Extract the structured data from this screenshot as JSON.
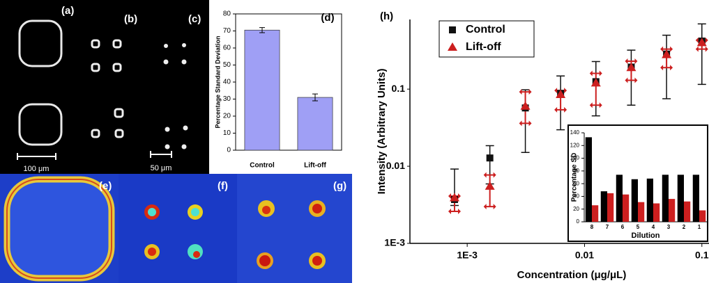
{
  "panels": {
    "labels": [
      "(a)",
      "(b)",
      "(c)",
      "(e)",
      "(f)",
      "(g)"
    ],
    "scale_bars": [
      "100 μm",
      "50 μm"
    ]
  },
  "chart_data": [
    {
      "type": "bar",
      "title": "(d)",
      "y_label": "Percentage Standard Deviation",
      "categories": [
        "Control",
        "Lift-off"
      ],
      "values": [
        70.5,
        31
      ],
      "errors": [
        1.5,
        2
      ],
      "color": "#9f9ff5",
      "ylim": [
        0,
        80
      ],
      "yticks": [
        0,
        10,
        20,
        30,
        40,
        50,
        60,
        70,
        80
      ]
    },
    {
      "type": "scatter",
      "title": "(h)",
      "x_label": "Concentration (μg/μL)",
      "y_label": "Intensity (Arbitrary Units)",
      "log_x": true,
      "log_y": true,
      "legend": "upper-left",
      "x": [
        0.00078,
        0.00156,
        0.00313,
        0.00625,
        0.0125,
        0.025,
        0.05,
        0.1
      ],
      "xlim": [
        0.000325,
        0.115
      ],
      "xticks": [
        {
          "value": 0.001,
          "label": "1E-3"
        },
        0.01,
        0.1
      ],
      "ylim": [
        0.001,
        0.8
      ],
      "yticks": [
        {
          "value": 0.001,
          "label": "1E-3"
        },
        0.01,
        0.1
      ],
      "series": [
        {
          "name": "Control",
          "color": "#111111",
          "marker": "square",
          "values": [
            0.0037,
            0.0128,
            0.057,
            0.088,
            0.125,
            0.193,
            0.285,
            0.42
          ],
          "low": [
            0.0031,
            0.0059,
            0.0151,
            0.0297,
            0.045,
            0.062,
            0.075,
            0.115
          ],
          "high": [
            0.0092,
            0.0185,
            0.098,
            0.148,
            0.228,
            0.32,
            0.5,
            0.7
          ]
        },
        {
          "name": "Lift-off",
          "color": "#cc1f1f",
          "marker": "triangle",
          "values": [
            0.0039,
            0.0055,
            0.06,
            0.085,
            0.12,
            0.19,
            0.28,
            0.4
          ],
          "low": [
            0.0026,
            0.003,
            0.036,
            0.054,
            0.062,
            0.13,
            0.19,
            0.33
          ],
          "high": [
            0.0041,
            0.0077,
            0.092,
            0.096,
            0.16,
            0.23,
            0.33,
            0.43
          ]
        }
      ]
    },
    {
      "type": "grouped-bar",
      "x_label": "Dilution",
      "y_label": "Percentage SD",
      "categories": [
        "8",
        "7",
        "6",
        "5",
        "4",
        "3",
        "2",
        "1"
      ],
      "ylim": [
        0,
        140
      ],
      "yticks": [
        0,
        20,
        40,
        60,
        80,
        100,
        120,
        140
      ],
      "series": [
        {
          "color": "#000000",
          "values": [
            133,
            48,
            74,
            67,
            68,
            74,
            74,
            74
          ]
        },
        {
          "color": "#cc1f1f",
          "values": [
            26,
            45,
            43,
            31,
            29,
            36,
            32,
            18
          ]
        }
      ]
    }
  ]
}
